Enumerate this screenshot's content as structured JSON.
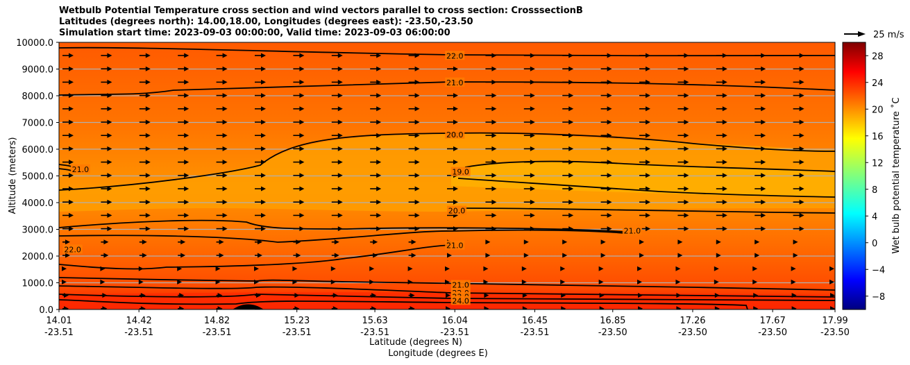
{
  "title_lines": [
    "Wetbulb Potential Temperature cross section and wind vectors parallel to cross section: CrosssectionB",
    "Latitudes (degrees north): 14.00,18.00, Longitudes (degrees east): -23.50,-23.50",
    "Simulation start time: 2023-09-03 00:00:00, Valid time: 2023-09-03 06:00:00"
  ],
  "reference_vector_label": "25 m/s",
  "colorbar": {
    "label": "Wet bulb potential temperature ˚C",
    "range": [
      -10,
      30
    ],
    "ticks": [
      "28",
      "24",
      "20",
      "16",
      "12",
      "8",
      "4",
      "0",
      "−4",
      "−8"
    ],
    "colormap": "jet"
  },
  "chart_data": {
    "type": "contour",
    "title": "Wetbulb Potential Temperature cross section and wind vectors parallel to cross section: CrosssectionB",
    "ylabel": "Altitude (meters)",
    "xlabel_lines": [
      "Latitude (degrees N)",
      "Longitude (degrees E)"
    ],
    "ylim": [
      0,
      10000
    ],
    "xlim": [
      14.01,
      17.99
    ],
    "yticks": [
      "10000.0",
      "9000.0",
      "8000.0",
      "7000.0",
      "6000.0",
      "5000.0",
      "4000.0",
      "3000.0",
      "2000.0",
      "1000.0",
      "0.0"
    ],
    "xticks": [
      {
        "lat": "14.01",
        "lon": "-23.51"
      },
      {
        "lat": "14.42",
        "lon": "-23.51"
      },
      {
        "lat": "14.82",
        "lon": "-23.51"
      },
      {
        "lat": "15.23",
        "lon": "-23.51"
      },
      {
        "lat": "15.63",
        "lon": "-23.51"
      },
      {
        "lat": "16.04",
        "lon": "-23.51"
      },
      {
        "lat": "16.45",
        "lon": "-23.51"
      },
      {
        "lat": "16.85",
        "lon": "-23.50"
      },
      {
        "lat": "17.26",
        "lon": "-23.50"
      },
      {
        "lat": "17.67",
        "lon": "-23.50"
      },
      {
        "lat": "17.99",
        "lon": "-23.50"
      }
    ],
    "grid": "horizontal",
    "contour_labels": [
      {
        "text": "22.0",
        "x": 16.04,
        "y": 9500
      },
      {
        "text": "21.0",
        "x": 16.04,
        "y": 8500
      },
      {
        "text": "20.0",
        "x": 16.04,
        "y": 6550
      },
      {
        "text": "21.0",
        "x": 14.12,
        "y": 5250
      },
      {
        "text": "19.0",
        "x": 16.07,
        "y": 5150
      },
      {
        "text": "20.0",
        "x": 16.05,
        "y": 3700
      },
      {
        "text": "21.0",
        "x": 16.95,
        "y": 2950
      },
      {
        "text": "22.0",
        "x": 14.08,
        "y": 2250
      },
      {
        "text": "21.0",
        "x": 16.04,
        "y": 2400
      },
      {
        "text": "21.0",
        "x": 16.07,
        "y": 920
      },
      {
        "text": "22.0",
        "x": 16.07,
        "y": 620
      },
      {
        "text": "23.0",
        "x": 16.07,
        "y": 480
      },
      {
        "text": "24.0",
        "x": 16.07,
        "y": 330
      }
    ],
    "contour_levels": [
      19,
      20,
      21,
      22,
      23,
      24
    ],
    "wind": "vectors parallel to cross section, directed toward increasing latitude; strongest aloft, weakest near 1000-1600 m"
  }
}
